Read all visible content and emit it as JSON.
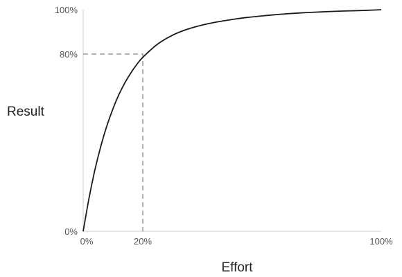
{
  "chart_data": {
    "type": "line",
    "title": "",
    "xlabel": "Effort",
    "ylabel": "Result",
    "xlim": [
      0,
      100
    ],
    "ylim": [
      0,
      100
    ],
    "x_ticks": [
      "0%",
      "20%",
      "100%"
    ],
    "y_ticks": [
      "0%",
      "80%",
      "100%"
    ],
    "x_tick_values": [
      0,
      20,
      100
    ],
    "y_tick_values": [
      0,
      80,
      100
    ],
    "grid": false,
    "series": [
      {
        "x": [
          0,
          2,
          4,
          6,
          8,
          10,
          12,
          14,
          16,
          18,
          20,
          25,
          30,
          35,
          40,
          45,
          50,
          55,
          60,
          65,
          70,
          75,
          80,
          85,
          90,
          95,
          100
        ],
        "y": [
          0,
          15.2,
          28.1,
          38.8,
          47.8,
          55.3,
          61.7,
          67.0,
          71.5,
          75.3,
          78.5,
          84.5,
          88.5,
          91.2,
          93.1,
          94.5,
          95.6,
          96.5,
          97.2,
          97.8,
          98.3,
          98.7,
          99.0,
          99.3,
          99.5,
          99.7,
          100
        ]
      }
    ],
    "annotations": [
      {
        "type": "dashed-guide",
        "x": 20,
        "y": 80
      }
    ],
    "colors": {
      "curve": "#1a1a1a",
      "axis": "#cccccc",
      "guide": "#888888"
    }
  }
}
